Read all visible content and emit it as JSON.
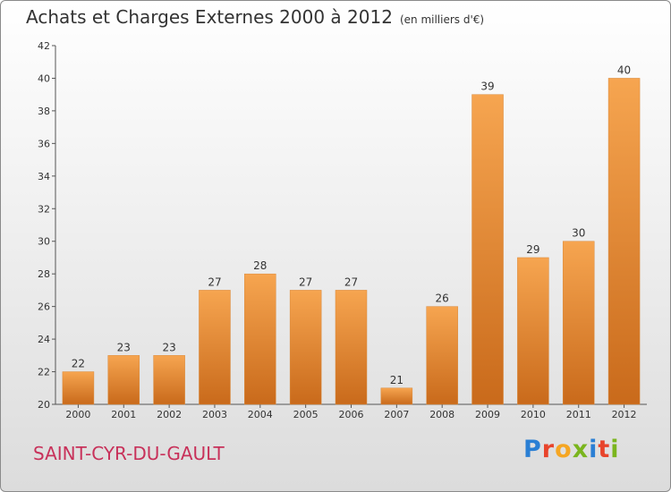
{
  "title": "Achats et Charges Externes 2000 à 2012",
  "subtitle": "(en milliers d'€)",
  "commune": "SAINT-CYR-DU-GAULT",
  "logo": "Proxiti",
  "colors": {
    "bar_light": "#f6a550",
    "bar_dark": "#c96a1b",
    "commune": "#c8315a"
  },
  "chart_data": {
    "type": "bar",
    "title": "Achats et Charges Externes 2000 à 2012",
    "subtitle": "(en milliers d'€)",
    "categories": [
      "2000",
      "2001",
      "2002",
      "2003",
      "2004",
      "2005",
      "2006",
      "2007",
      "2008",
      "2009",
      "2010",
      "2011",
      "2012"
    ],
    "values": [
      22,
      23,
      23,
      27,
      28,
      27,
      27,
      21,
      26,
      39,
      29,
      30,
      40
    ],
    "ylim": [
      20,
      42
    ],
    "yticks": [
      20,
      22,
      24,
      26,
      28,
      30,
      32,
      34,
      36,
      38,
      40,
      42
    ],
    "grid": false,
    "data_labels": true
  }
}
